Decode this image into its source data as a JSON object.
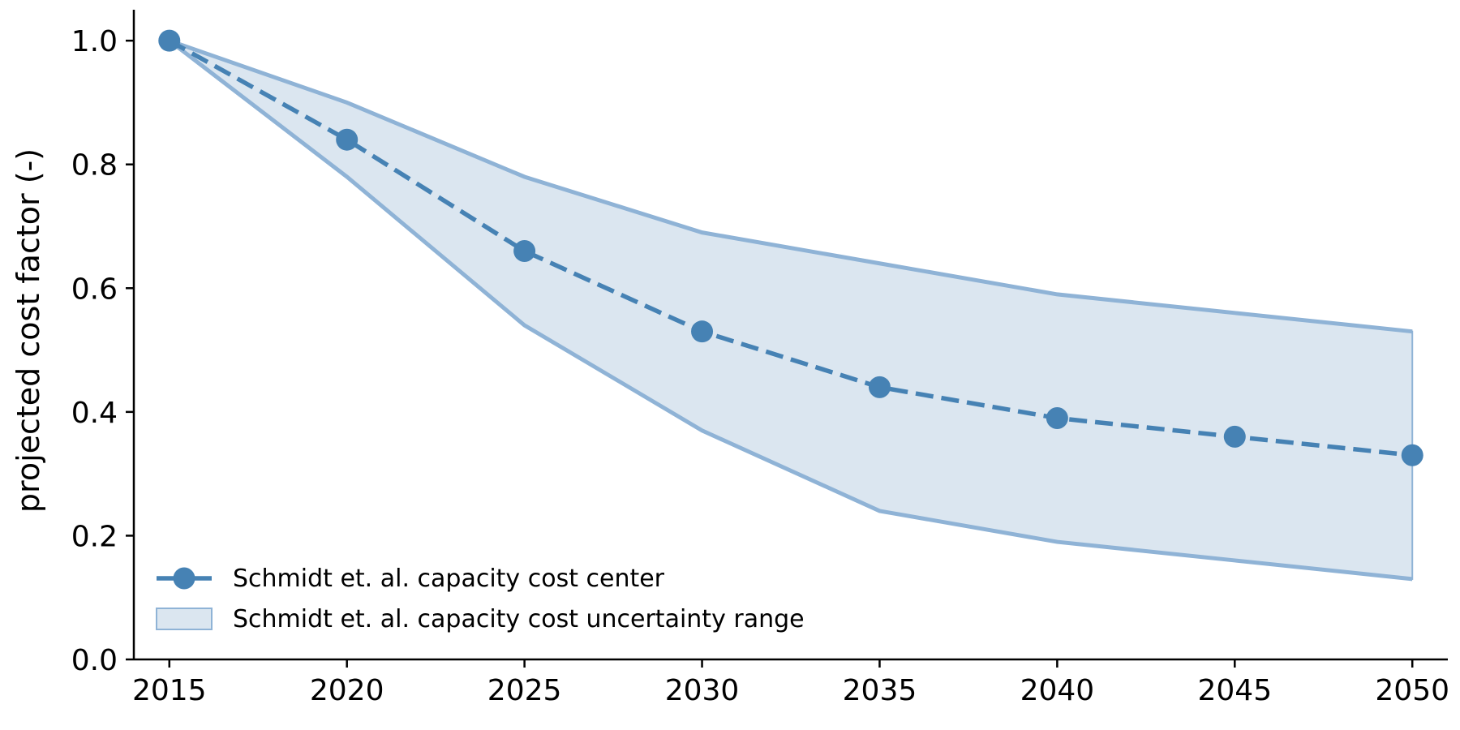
{
  "chart_data": {
    "type": "line",
    "x": [
      2015,
      2020,
      2025,
      2030,
      2035,
      2040,
      2045,
      2050
    ],
    "series": [
      {
        "name": "Schmidt et. al. capacity cost center",
        "values": [
          1.0,
          0.84,
          0.66,
          0.53,
          0.44,
          0.39,
          0.36,
          0.33
        ],
        "style": "dashed line with circle markers",
        "color": "#4682b4"
      }
    ],
    "band": {
      "name": "Schmidt et. al. capacity cost uncertainty range",
      "upper": [
        1.0,
        0.9,
        0.78,
        0.69,
        0.64,
        0.59,
        0.56,
        0.53
      ],
      "lower": [
        1.0,
        0.78,
        0.54,
        0.37,
        0.24,
        0.19,
        0.16,
        0.13
      ],
      "fill_color": "#dbe6f0",
      "edge_color": "#8fb3d6"
    },
    "title": "",
    "xlabel": "",
    "ylabel": "projected cost factor (-)",
    "xlim": [
      2014,
      2051
    ],
    "ylim": [
      0.0,
      1.05
    ],
    "xticks": [
      "2015",
      "2020",
      "2025",
      "2030",
      "2035",
      "2040",
      "2045",
      "2050"
    ],
    "yticks": [
      "0.0",
      "0.2",
      "0.4",
      "0.6",
      "0.8",
      "1.0"
    ],
    "grid": false,
    "legend_position": "bottom-left"
  }
}
